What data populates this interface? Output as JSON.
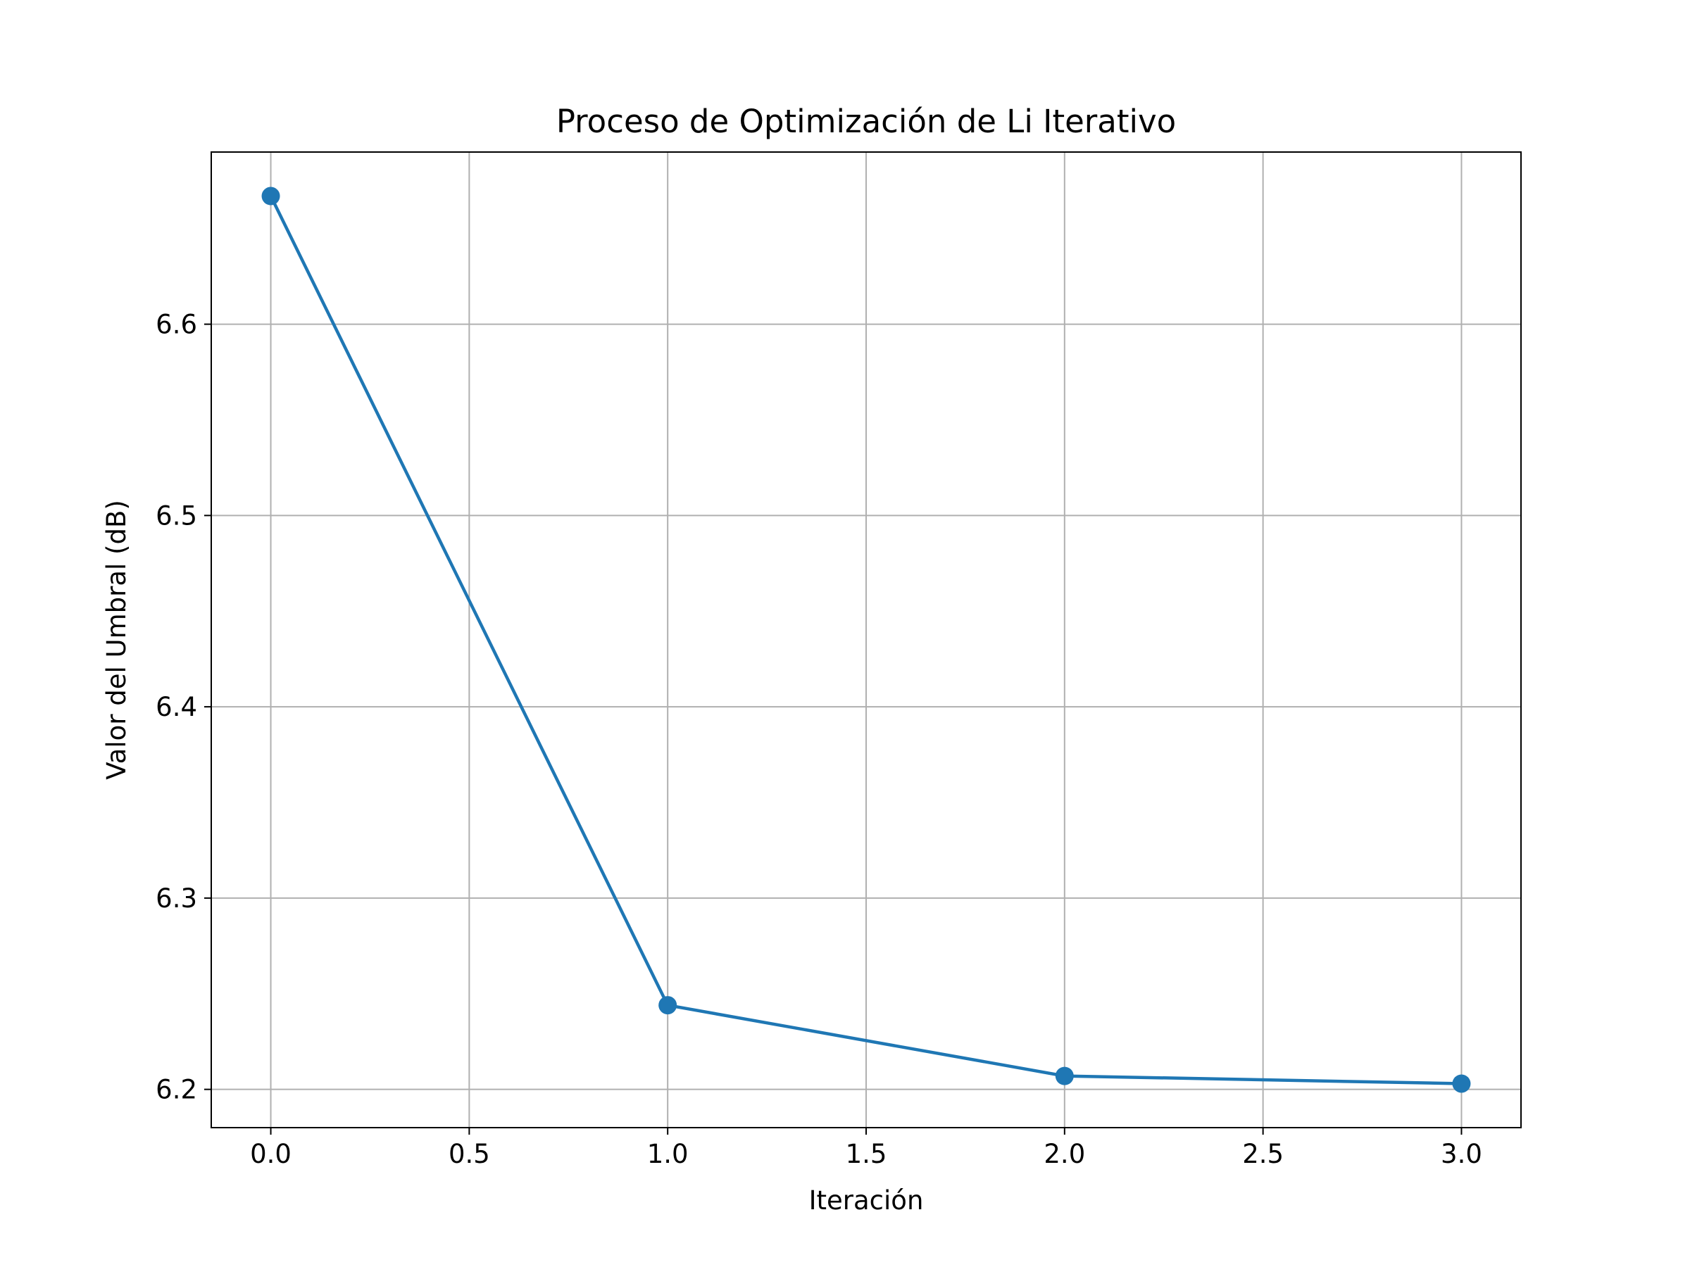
{
  "chart_data": {
    "type": "line",
    "title": "Proceso de Optimización de Li Iterativo",
    "xlabel": "Iteración",
    "ylabel": "Valor del Umbral (dB)",
    "x": [
      0,
      1,
      2,
      3
    ],
    "series": [
      {
        "values": [
          6.667,
          6.244,
          6.207,
          6.203
        ]
      }
    ],
    "xlim": [
      -0.15,
      3.15
    ],
    "ylim": [
      6.18,
      6.69
    ],
    "xticks": [
      0.0,
      0.5,
      1.0,
      1.5,
      2.0,
      2.5,
      3.0
    ],
    "xtick_labels": [
      "0.0",
      "0.5",
      "1.0",
      "1.5",
      "2.0",
      "2.5",
      "3.0"
    ],
    "yticks": [
      6.2,
      6.3,
      6.4,
      6.5,
      6.6
    ],
    "ytick_labels": [
      "6.2",
      "6.3",
      "6.4",
      "6.5",
      "6.6"
    ],
    "grid": true,
    "marker": "circle",
    "colors": {
      "series": "#1f77b4",
      "grid": "#b0b0b0",
      "axes": "#000000"
    }
  }
}
